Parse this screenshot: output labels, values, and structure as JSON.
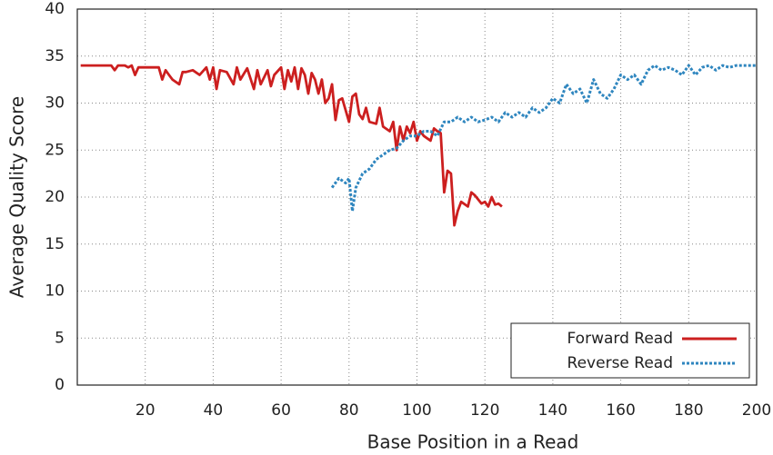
{
  "chart_data": {
    "type": "line",
    "x_label": "Base Position in a Read",
    "y_label": "Average Quality Score",
    "xlim": [
      0,
      200
    ],
    "ylim": [
      0,
      40
    ],
    "xticks": [
      20,
      40,
      60,
      80,
      100,
      120,
      140,
      160,
      180,
      200
    ],
    "yticks": [
      0,
      5,
      10,
      15,
      20,
      25,
      30,
      35,
      40
    ],
    "grid": true,
    "legend": "lower right",
    "series": [
      {
        "name": "Forward Read",
        "color": "#cc1f1f",
        "dash": false,
        "x": [
          1,
          4,
          7,
          10,
          11,
          12,
          14,
          15,
          16,
          17,
          18,
          20,
          22,
          24,
          25,
          26,
          27,
          28,
          30,
          31,
          32,
          34,
          36,
          38,
          39,
          40,
          41,
          42,
          44,
          46,
          47,
          48,
          50,
          52,
          53,
          54,
          56,
          57,
          58,
          60,
          61,
          62,
          63,
          64,
          65,
          66,
          67,
          68,
          69,
          70,
          71,
          72,
          73,
          74,
          75,
          76,
          77,
          78,
          80,
          81,
          82,
          83,
          84,
          85,
          86,
          88,
          89,
          90,
          92,
          93,
          94,
          95,
          96,
          97,
          98,
          99,
          100,
          101,
          102,
          104,
          105,
          106,
          107,
          108,
          109,
          110,
          111,
          112,
          113,
          115,
          116,
          117,
          119,
          120,
          121,
          122,
          123,
          124,
          125
        ],
        "values": [
          34,
          34,
          34,
          34,
          33.5,
          34,
          34,
          33.8,
          34,
          33,
          33.8,
          33.8,
          33.8,
          33.8,
          32.5,
          33.5,
          33,
          32.5,
          32,
          33.3,
          33.3,
          33.5,
          33,
          33.8,
          32.5,
          33.8,
          31.5,
          33.5,
          33.3,
          32,
          33.8,
          32.5,
          33.7,
          31.5,
          33.5,
          32,
          33.5,
          31.8,
          33,
          33.8,
          31.5,
          33.5,
          32.3,
          33.8,
          31.5,
          33.7,
          33,
          31,
          33.2,
          32.5,
          31,
          32.5,
          30,
          30.5,
          32,
          28.2,
          30.3,
          30.5,
          28,
          30.7,
          31,
          28.8,
          28.3,
          29.5,
          28,
          27.8,
          29.5,
          27.5,
          27,
          28,
          25,
          27.5,
          26,
          27.5,
          26.8,
          28,
          26,
          27,
          26.5,
          26,
          27.3,
          27,
          26.8,
          20.5,
          22.8,
          22.5,
          17,
          18.5,
          19.5,
          19,
          20.5,
          20.2,
          19.3,
          19.5,
          19,
          20,
          19.2,
          19.3,
          19
        ]
      },
      {
        "name": "Reverse Read",
        "color": "#2f86bf",
        "dash": true,
        "x": [
          75,
          77,
          79,
          80,
          81,
          82,
          84,
          86,
          88,
          90,
          92,
          94,
          96,
          98,
          100,
          102,
          104,
          106,
          108,
          110,
          112,
          114,
          116,
          118,
          120,
          122,
          124,
          126,
          128,
          130,
          132,
          134,
          136,
          138,
          140,
          142,
          144,
          146,
          148,
          150,
          152,
          154,
          156,
          158,
          160,
          162,
          164,
          166,
          168,
          170,
          172,
          174,
          176,
          178,
          180,
          182,
          184,
          186,
          188,
          190,
          192,
          194,
          196,
          198,
          200
        ],
        "values": [
          21,
          22,
          21.5,
          22,
          18.5,
          21,
          22.5,
          23,
          24,
          24.5,
          25,
          25.2,
          26,
          26.5,
          26.5,
          27,
          27,
          26.5,
          28,
          28,
          28.5,
          28,
          28.5,
          28,
          28.2,
          28.5,
          28,
          29,
          28.5,
          29,
          28.5,
          29.5,
          29,
          29.5,
          30.5,
          30,
          32,
          31,
          31.5,
          30,
          32.5,
          31,
          30.5,
          31.5,
          33,
          32.5,
          33,
          32,
          33.5,
          34,
          33.5,
          33.8,
          33.5,
          33,
          34,
          33,
          33.8,
          34,
          33.5,
          34,
          33.8,
          34,
          34,
          34,
          34
        ]
      }
    ]
  }
}
